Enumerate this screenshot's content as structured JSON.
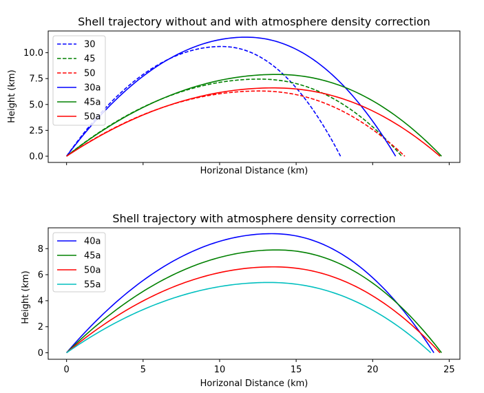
{
  "chart_data": [
    {
      "type": "line",
      "title": "Shell trajectory without and with atmosphere density correction",
      "xlabel": "Horizonal Distance (km)",
      "ylabel": "Height (km)",
      "xlim": [
        -1.2,
        25.7
      ],
      "ylim": [
        -0.6,
        12.1
      ],
      "xticks": [
        0,
        5,
        10,
        15,
        20,
        25
      ],
      "xtick_labels_visible": false,
      "yticks": [
        0.0,
        2.5,
        5.0,
        7.5,
        10.0
      ],
      "ytick_labels": [
        "0.0",
        "2.5",
        "5.0",
        "7.5",
        "10.0"
      ],
      "grid": false,
      "legend": "top-left",
      "series": [
        {
          "name": "30",
          "color": "#0000ff",
          "dash": true,
          "range": 17.9,
          "max_height": 10.6,
          "apex_x": 10.1
        },
        {
          "name": "45",
          "color": "#008000",
          "dash": true,
          "range": 21.9,
          "max_height": 7.45,
          "apex_x": 12.6
        },
        {
          "name": "50",
          "color": "#ff0000",
          "dash": true,
          "range": 22.1,
          "max_height": 6.3,
          "apex_x": 12.6
        },
        {
          "name": "30a",
          "color": "#0000ff",
          "dash": false,
          "range": 21.5,
          "max_height": 11.5,
          "apex_x": 11.7
        },
        {
          "name": "45a",
          "color": "#008000",
          "dash": false,
          "range": 24.5,
          "max_height": 7.9,
          "apex_x": 13.7
        },
        {
          "name": "50a",
          "color": "#ff0000",
          "dash": false,
          "range": 24.4,
          "max_height": 6.6,
          "apex_x": 13.5
        }
      ]
    },
    {
      "type": "line",
      "title": "Shell trajectory with atmosphere density correction",
      "xlabel": "Horizonal Distance (km)",
      "ylabel": "Height (km)",
      "xlim": [
        -1.2,
        25.7
      ],
      "ylim": [
        -0.5,
        9.6
      ],
      "xticks": [
        0,
        5,
        10,
        15,
        20,
        25
      ],
      "xtick_labels": [
        "0",
        "5",
        "10",
        "15",
        "20",
        "25"
      ],
      "yticks": [
        0,
        2,
        4,
        6,
        8
      ],
      "ytick_labels": [
        "0",
        "2",
        "4",
        "6",
        "8"
      ],
      "grid": false,
      "legend": "top-left",
      "series": [
        {
          "name": "40a",
          "color": "#0000ff",
          "dash": false,
          "range": 24.0,
          "max_height": 9.15,
          "apex_x": 13.4
        },
        {
          "name": "45a",
          "color": "#008000",
          "dash": false,
          "range": 24.5,
          "max_height": 7.9,
          "apex_x": 13.7
        },
        {
          "name": "50a",
          "color": "#ff0000",
          "dash": false,
          "range": 24.4,
          "max_height": 6.6,
          "apex_x": 13.5
        },
        {
          "name": "55a",
          "color": "#00bfbf",
          "dash": false,
          "range": 23.8,
          "max_height": 5.4,
          "apex_x": 13.2
        }
      ]
    }
  ]
}
